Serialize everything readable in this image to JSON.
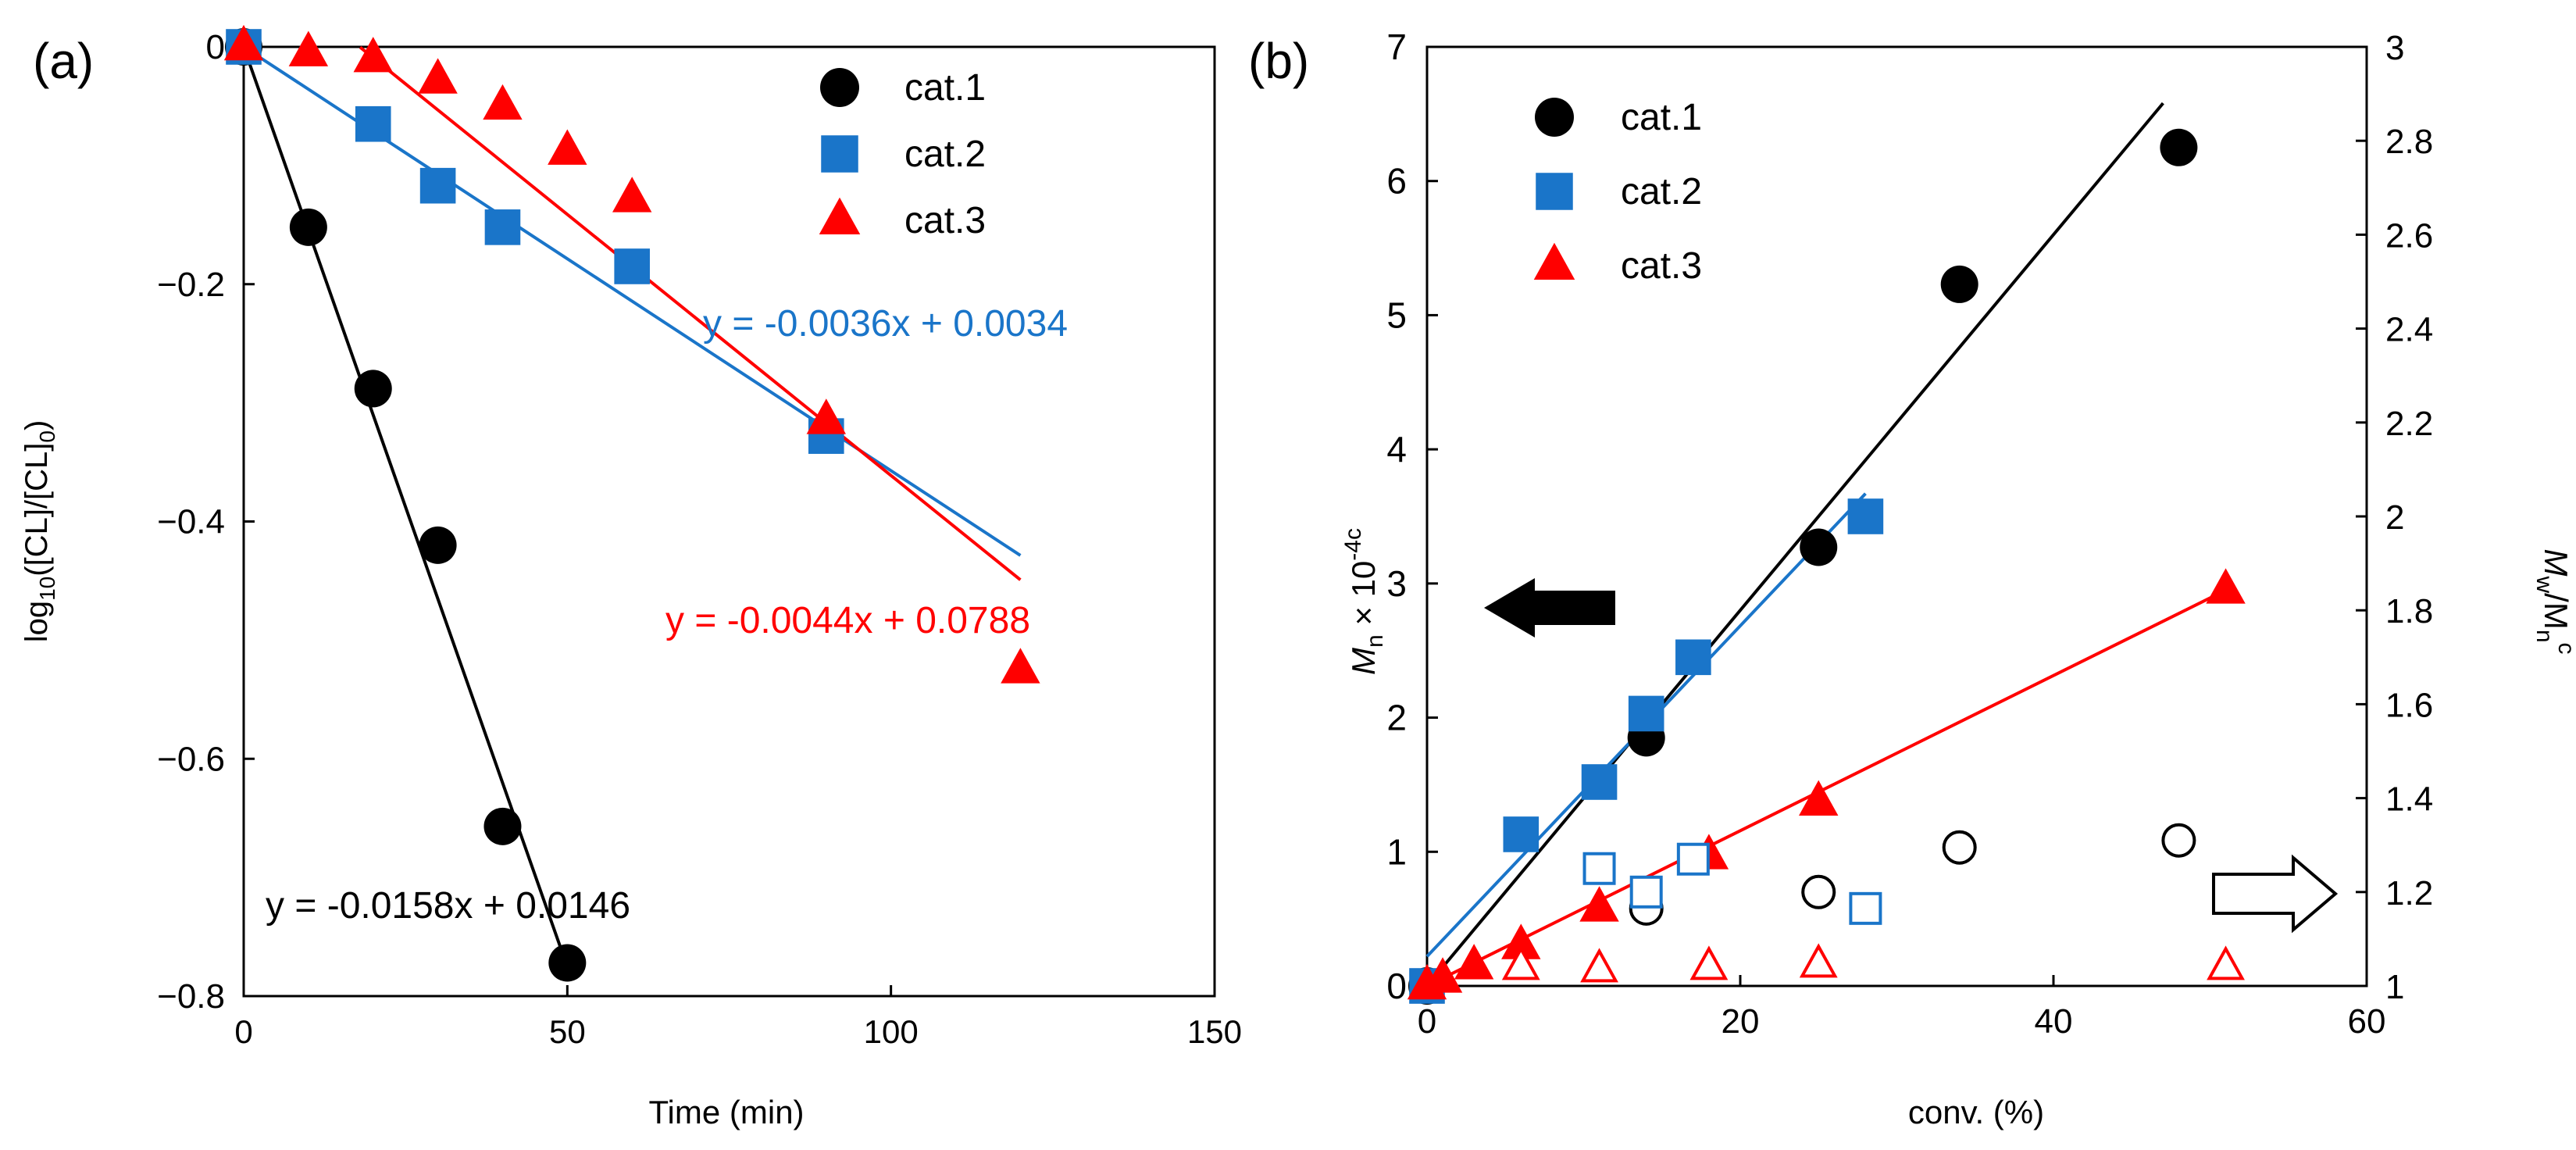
{
  "colors": {
    "cat1": "#000000",
    "cat2": "#1a75c9",
    "cat3": "#ff0000",
    "axis": "#000000"
  },
  "chart_data": [
    {
      "panel_label": "(a)",
      "type": "scatter",
      "xlabel": "Time (min)",
      "ylabel": {
        "base": "log",
        "sub": "10",
        "mid": "([CL]/[CL]",
        "sub2": "0",
        "end": ")"
      },
      "xlim": [
        0,
        150
      ],
      "ylim": [
        -0.8,
        0
      ],
      "xticks": [
        0,
        50,
        100,
        150
      ],
      "xtick_labels": [
        "0",
        "50",
        "100",
        "150"
      ],
      "yticks": [
        0,
        -0.2,
        -0.4,
        -0.6,
        -0.8
      ],
      "ytick_labels": [
        "0",
        "−0.2",
        "−0.4",
        "−0.6",
        "−0.8"
      ],
      "legend_position": "top-right",
      "series": [
        {
          "name": "cat.1",
          "marker": "circle",
          "color": "#000000",
          "x": [
            0,
            10,
            20,
            30,
            40,
            50
          ],
          "y": [
            0,
            -0.152,
            -0.288,
            -0.42,
            -0.657,
            -0.772
          ],
          "fit": {
            "slope": -0.0158,
            "intercept": 0.0146,
            "x_range": [
              0,
              50
            ],
            "label": "y = -0.0158x + 0.0146"
          }
        },
        {
          "name": "cat.2",
          "marker": "square",
          "color": "#1a75c9",
          "x": [
            0,
            20,
            30,
            40,
            60,
            90
          ],
          "y": [
            0,
            -0.065,
            -0.117,
            -0.152,
            -0.185,
            -0.328
          ],
          "fit": {
            "slope": -0.0036,
            "intercept": 0.0034,
            "x_range": [
              0,
              120
            ],
            "label": "y = -0.0036x + 0.0034"
          }
        },
        {
          "name": "cat.3",
          "marker": "triangle",
          "color": "#ff0000",
          "x": [
            0,
            10,
            20,
            30,
            40,
            50,
            60,
            90,
            120
          ],
          "y": [
            0,
            -0.005,
            -0.01,
            -0.028,
            -0.05,
            -0.088,
            -0.128,
            -0.315,
            -0.525
          ],
          "fit": {
            "slope": -0.0044,
            "intercept": 0.0788,
            "x_range": [
              18,
              120
            ],
            "label": "y = -0.0044x + 0.0788"
          }
        }
      ]
    },
    {
      "panel_label": "(b)",
      "type": "scatter",
      "xlabel": "conv. (%)",
      "ylabel_left": {
        "m": "M",
        "sub": "n",
        "rest": " × 10",
        "sup": "-4c"
      },
      "ylabel_right": {
        "m1": "M",
        "sub1": "w",
        "slash": "/M",
        "sub2": "n",
        "sup": "c"
      },
      "xlim": [
        0,
        60
      ],
      "ylim_left": [
        0,
        7
      ],
      "ylim_right": [
        1,
        3
      ],
      "xticks": [
        0,
        20,
        40,
        60
      ],
      "xtick_labels": [
        "0",
        "20",
        "40",
        "60"
      ],
      "yticks_left": [
        0,
        1,
        2,
        3,
        4,
        5,
        6,
        7
      ],
      "ytick_labels_left": [
        "0",
        "1",
        "2",
        "3",
        "4",
        "5",
        "6",
        "7"
      ],
      "yticks_right": [
        1,
        1.2,
        1.4,
        1.6,
        1.8,
        2,
        2.2,
        2.4,
        2.6,
        2.8,
        3
      ],
      "ytick_labels_right": [
        "1",
        "1.2",
        "1.4",
        "1.6",
        "1.8",
        "2",
        "2.2",
        "2.4",
        "2.6",
        "2.8",
        "3"
      ],
      "legend_position": "top-left",
      "annotations": [
        "left arrow points to Mn axis",
        "right arrow points to Mw/Mn axis"
      ],
      "series": [
        {
          "name": "cat.1",
          "marker": "circle",
          "color": "#000000",
          "axis": "left",
          "x": [
            0,
            14,
            25,
            34,
            48
          ],
          "y": [
            0,
            1.85,
            3.27,
            5.23,
            6.25
          ],
          "fit": {
            "x_range": [
              0,
              47
            ],
            "y_range": [
              0.0,
              6.58
            ]
          }
        },
        {
          "name": "cat.2",
          "marker": "square",
          "color": "#1a75c9",
          "axis": "left",
          "x": [
            0,
            6,
            11,
            14,
            17,
            28
          ],
          "y": [
            0,
            1.13,
            1.52,
            2.03,
            2.45,
            3.5
          ],
          "fit": {
            "x_range": [
              0,
              28
            ],
            "y_range": [
              0.22,
              3.67
            ]
          }
        },
        {
          "name": "cat.3",
          "marker": "triangle",
          "color": "#ff0000",
          "axis": "left",
          "x": [
            0,
            1,
            3,
            6,
            11,
            18,
            25,
            51
          ],
          "y": [
            0,
            0.05,
            0.15,
            0.3,
            0.58,
            0.97,
            1.37,
            2.95
          ],
          "fit": {
            "x_range": [
              0,
              51
            ],
            "y_range": [
              0.0,
              2.95
            ]
          }
        },
        {
          "name": "cat.1 (Mw/Mn)",
          "marker": "circle-open",
          "color": "#000000",
          "axis": "right",
          "x": [
            14,
            25,
            34,
            48
          ],
          "y": [
            1.165,
            1.2,
            1.295,
            1.31
          ]
        },
        {
          "name": "cat.2 (Mw/Mn)",
          "marker": "square-open",
          "color": "#1a75c9",
          "axis": "right",
          "x": [
            11,
            14,
            17,
            28
          ],
          "y": [
            1.25,
            1.2,
            1.27,
            1.165
          ]
        },
        {
          "name": "cat.3 (Mw/Mn)",
          "marker": "triangle-open",
          "color": "#ff0000",
          "axis": "right",
          "x": [
            6,
            11,
            18,
            25,
            51
          ],
          "y": [
            1.04,
            1.035,
            1.04,
            1.045,
            1.04
          ]
        }
      ]
    }
  ]
}
